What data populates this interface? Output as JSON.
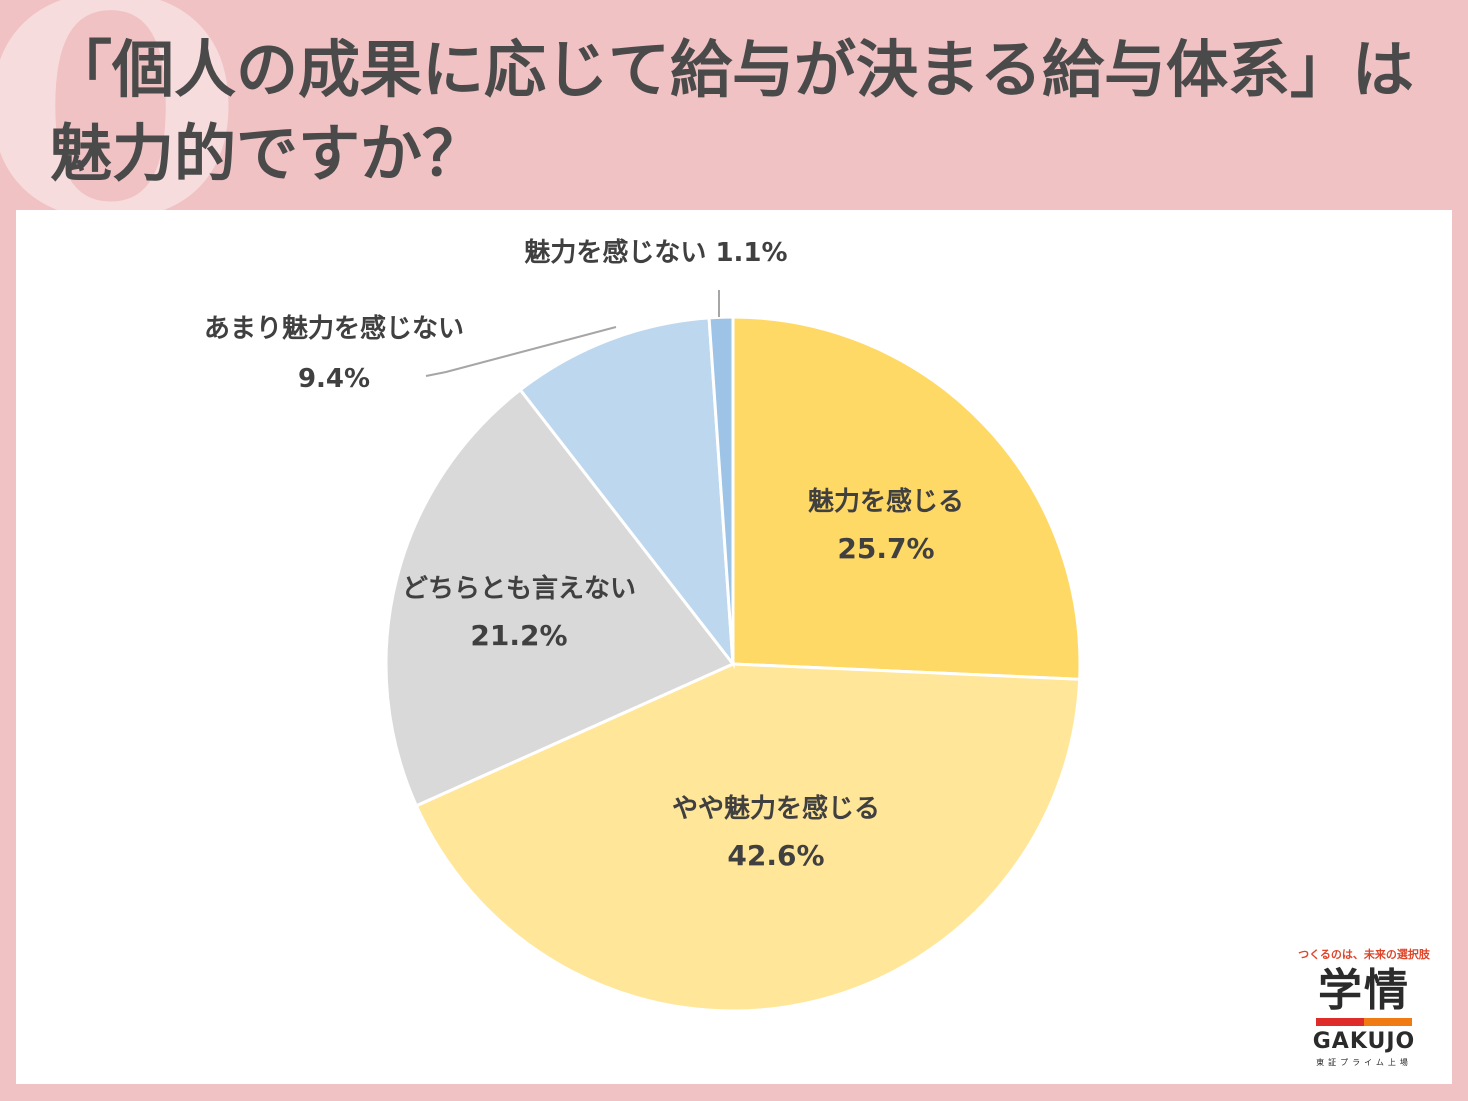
{
  "question_mark": "Q",
  "title": "「個人の成果に応じて給与が決まる給与体系」は魅力的ですか？",
  "brand": {
    "tagline": "つくるのは、未来の選択肢",
    "mark": "学情",
    "name_en": "GAKUJO",
    "sub": "東証プライム上場"
  },
  "chart_data": {
    "type": "pie",
    "start_angle_deg": 0,
    "direction": "clockwise",
    "slices": [
      {
        "label": "魅力を感じる",
        "value": 25.7,
        "value_label": "25.7%",
        "color": "#ffd966",
        "label_pos": "inside"
      },
      {
        "label": "やや魅力を感じる",
        "value": 42.6,
        "value_label": "42.6%",
        "color": "#ffe699",
        "label_pos": "inside"
      },
      {
        "label": "どちらとも言えない",
        "value": 21.2,
        "value_label": "21.2%",
        "color": "#d9d9d9",
        "label_pos": "inside"
      },
      {
        "label": "あまり魅力を感じない",
        "value": 9.4,
        "value_label": "9.4%",
        "color": "#bdd7ee",
        "label_pos": "outside"
      },
      {
        "label": "魅力を感じない",
        "value": 1.1,
        "value_label": "1.1%",
        "color": "#9dc3e6",
        "label_pos": "outside"
      }
    ],
    "colors": {
      "text": "#404040",
      "leader": "#a6a6a6",
      "border": "#ffffff"
    }
  }
}
